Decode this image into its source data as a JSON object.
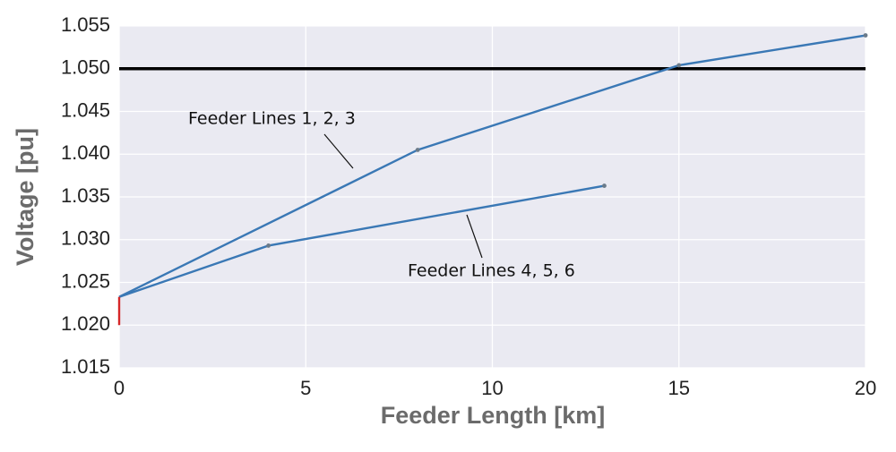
{
  "chart_data": {
    "type": "line",
    "xlabel": "Feeder Length [km]",
    "ylabel": "Voltage [pu]",
    "xlim": [
      0,
      20
    ],
    "ylim": [
      1.015,
      1.055
    ],
    "xticks": [
      0,
      5,
      10,
      15,
      20
    ],
    "yticks": [
      1.015,
      {
        "value": 1.02,
        "label": "1.020"
      },
      1.025,
      {
        "value": 1.03,
        "label": "1.030"
      },
      1.035,
      {
        "value": 1.04,
        "label": "1.040"
      },
      1.045,
      {
        "value": 1.05,
        "label": "1.050"
      },
      1.055
    ],
    "grid": true,
    "background": "#eaeaf2",
    "hline": {
      "value": 1.05,
      "color": "#000000"
    },
    "series": [
      {
        "name": "Feeder Lines 1, 2, 3",
        "color": "#3a78b5",
        "x": [
          0,
          8,
          15,
          20
        ],
        "values": [
          1.0233,
          1.0405,
          1.0504,
          1.0539
        ]
      },
      {
        "name": "Feeder Lines 4, 5, 6",
        "color": "#3a78b5",
        "x": [
          0,
          4,
          13
        ],
        "values": [
          1.0233,
          1.0293,
          1.0363
        ]
      },
      {
        "color": "#d62728",
        "x": [
          0,
          0
        ],
        "values": [
          1.02,
          1.0233
        ]
      }
    ]
  }
}
